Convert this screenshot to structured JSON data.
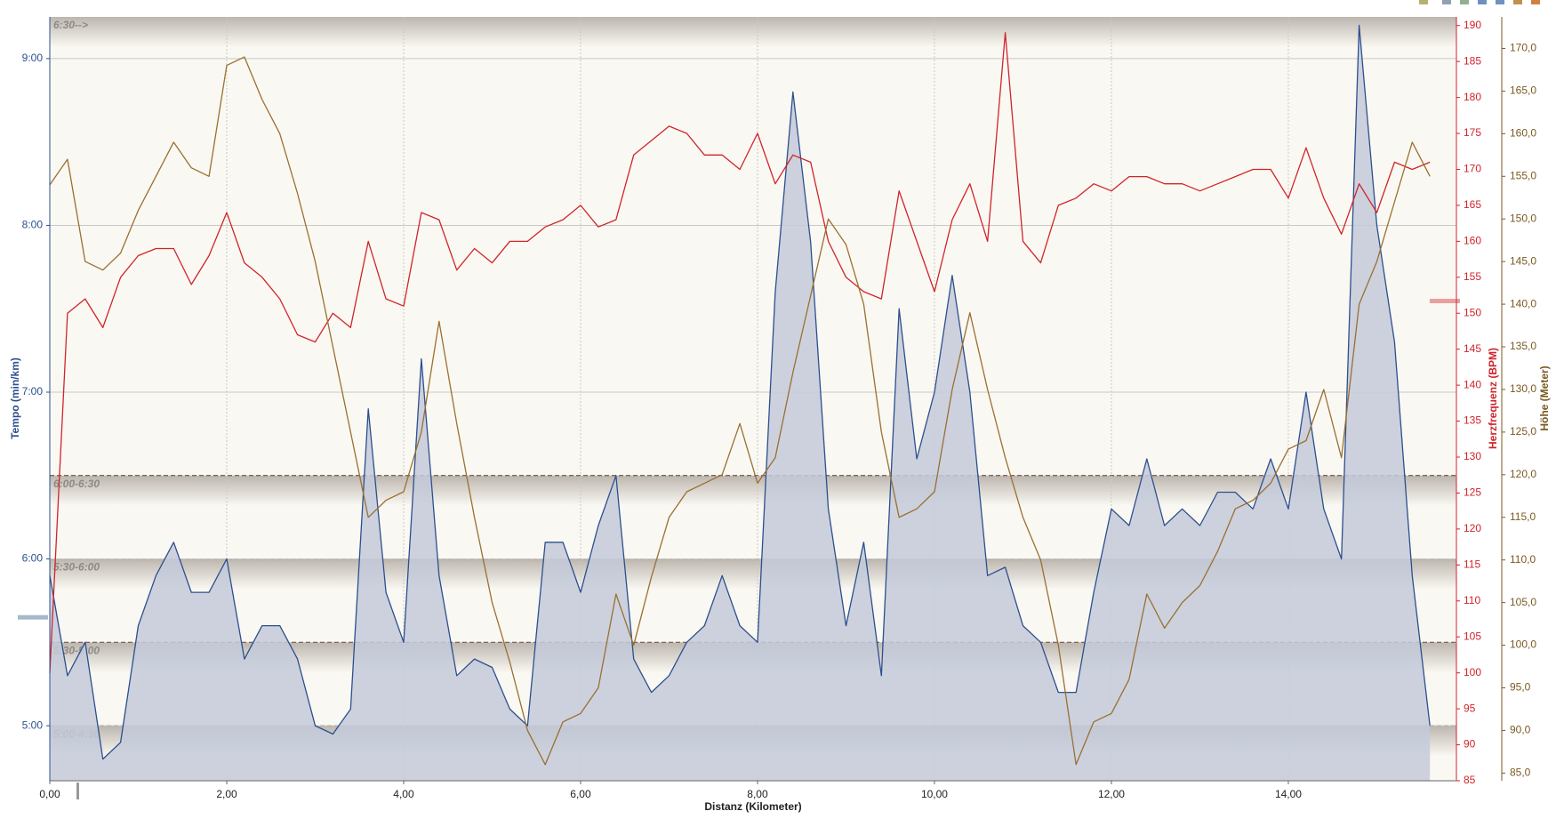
{
  "chart_data": {
    "type": "line",
    "xlabel": "Distanz (Kilometer)",
    "ylabel": "Tempo (min/km)",
    "y2label": "Herzfrequenz (BPM)",
    "y3label": "Höhe (Meter)",
    "xlim": [
      0,
      15.9
    ],
    "xticks": [
      {
        "value": 0,
        "label": "0,00"
      },
      {
        "value": 2,
        "label": "2,00"
      },
      {
        "value": 4,
        "label": "4,00"
      },
      {
        "value": 6,
        "label": "6,00"
      },
      {
        "value": 8,
        "label": "8,00"
      },
      {
        "value": 10,
        "label": "10,00"
      },
      {
        "value": 12,
        "label": "12,00"
      },
      {
        "value": 14,
        "label": "14,00"
      }
    ],
    "ylim": [
      4.67,
      9.25
    ],
    "yticks": [
      {
        "value": 5,
        "label": "5:00"
      },
      {
        "value": 6,
        "label": "6:00"
      },
      {
        "value": 7,
        "label": "7:00"
      },
      {
        "value": 8,
        "label": "8:00"
      },
      {
        "value": 9,
        "label": "9:00"
      }
    ],
    "y2lim": [
      85,
      191.2
    ],
    "y2ticks": [
      85,
      90,
      95,
      100,
      105,
      110,
      115,
      120,
      125,
      130,
      135,
      140,
      145,
      150,
      155,
      160,
      165,
      170,
      175,
      180,
      185,
      190
    ],
    "y3lim": [
      84.1,
      173.7
    ],
    "y3ticks": [
      {
        "value": 85,
        "label": "85,0"
      },
      {
        "value": 90,
        "label": "90,0"
      },
      {
        "value": 95,
        "label": "95,0"
      },
      {
        "value": 100,
        "label": "100,0"
      },
      {
        "value": 105,
        "label": "105,0"
      },
      {
        "value": 110,
        "label": "110,0"
      },
      {
        "value": 115,
        "label": "115,0"
      },
      {
        "value": 120,
        "label": "120,0"
      },
      {
        "value": 125,
        "label": "125,0"
      },
      {
        "value": 130,
        "label": "130,0"
      },
      {
        "value": 135,
        "label": "135,0"
      },
      {
        "value": 140,
        "label": "140,0"
      },
      {
        "value": 145,
        "label": "145,0"
      },
      {
        "value": 150,
        "label": "150,0"
      },
      {
        "value": 155,
        "label": "155,0"
      },
      {
        "value": 160,
        "label": "160,0"
      },
      {
        "value": 165,
        "label": "165,0"
      },
      {
        "value": 170,
        "label": "170,0"
      }
    ],
    "grid": true,
    "zones": [
      {
        "label": "6:30-->",
        "min": 6.5
      },
      {
        "label": "6:00-6:30",
        "min": 6.0
      },
      {
        "label": "5:30-6:00",
        "min": 5.5
      },
      {
        "label": "5:30-5:00",
        "min": 5.0
      },
      {
        "label": "5:00-4:30",
        "min": 4.5
      }
    ],
    "tempo_average": 5.65,
    "y2_average": 151.7,
    "x": [
      0,
      0.2,
      0.4,
      0.6,
      0.8,
      1.0,
      1.2,
      1.4,
      1.6,
      1.8,
      2.0,
      2.2,
      2.4,
      2.6,
      2.8,
      3.0,
      3.2,
      3.4,
      3.6,
      3.8,
      4.0,
      4.2,
      4.4,
      4.6,
      4.8,
      5.0,
      5.2,
      5.4,
      5.6,
      5.8,
      6.0,
      6.2,
      6.4,
      6.6,
      6.8,
      7.0,
      7.2,
      7.4,
      7.6,
      7.8,
      8.0,
      8.2,
      8.4,
      8.6,
      8.8,
      9.0,
      9.2,
      9.4,
      9.6,
      9.8,
      10.0,
      10.2,
      10.4,
      10.6,
      10.8,
      11.0,
      11.2,
      11.4,
      11.6,
      11.8,
      12.0,
      12.2,
      12.4,
      12.6,
      12.8,
      13.0,
      13.2,
      13.4,
      13.6,
      13.8,
      14.0,
      14.2,
      14.4,
      14.6,
      14.8,
      15.0,
      15.2,
      15.4,
      15.6
    ],
    "series": [
      {
        "axis": "y",
        "color": "#2c4f8f",
        "fill": "#c3cad9",
        "values": [
          5.9,
          5.3,
          5.5,
          4.8,
          4.9,
          5.6,
          5.9,
          6.1,
          5.8,
          5.8,
          6.0,
          5.4,
          5.6,
          5.6,
          5.4,
          5.0,
          4.95,
          5.1,
          6.9,
          5.8,
          5.5,
          7.2,
          5.9,
          5.3,
          5.4,
          5.35,
          5.1,
          5.0,
          6.1,
          6.1,
          5.8,
          6.2,
          6.5,
          5.4,
          5.2,
          5.3,
          5.5,
          5.6,
          5.9,
          5.6,
          5.5,
          7.6,
          8.8,
          7.9,
          6.3,
          5.6,
          6.1,
          5.3,
          7.5,
          6.6,
          7.0,
          7.7,
          7.0,
          5.9,
          5.95,
          5.6,
          5.5,
          5.2,
          5.2,
          5.8,
          6.3,
          6.2,
          6.6,
          6.2,
          6.3,
          6.2,
          6.4,
          6.4,
          6.3,
          6.6,
          6.3,
          7.0,
          6.3,
          6.0,
          9.2,
          8.0,
          7.3,
          5.9,
          5.0
        ]
      },
      {
        "axis": "y2",
        "color": "#d0242b",
        "values": [
          100,
          150,
          152,
          148,
          155,
          158,
          159,
          159,
          154,
          158,
          164,
          157,
          155,
          152,
          147,
          146,
          150,
          148,
          160,
          152,
          151,
          164,
          163,
          156,
          159,
          157,
          160,
          160,
          162,
          163,
          165,
          162,
          163,
          172,
          174,
          176,
          175,
          172,
          172,
          170,
          175,
          168,
          172,
          171,
          160,
          155,
          153,
          152,
          167,
          160,
          153,
          163,
          168,
          160,
          189,
          160,
          157,
          165,
          166,
          168,
          167,
          169,
          169,
          168,
          168,
          167,
          168,
          169,
          170,
          170,
          166,
          173,
          166,
          161,
          168,
          164,
          171,
          170,
          171
        ]
      },
      {
        "axis": "y3",
        "color": "#9a7030",
        "values": [
          154,
          157,
          145,
          144,
          146,
          151,
          155,
          159,
          156,
          155,
          168,
          169,
          164,
          160,
          153,
          145,
          135,
          125,
          115,
          117,
          118,
          125,
          138,
          126,
          115,
          105,
          98,
          90,
          86,
          91,
          92,
          95,
          106,
          100,
          108,
          115,
          118,
          119,
          120,
          126,
          119,
          122,
          132,
          141,
          150,
          147,
          140,
          125,
          115,
          116,
          118,
          130,
          139,
          130,
          122,
          115,
          110,
          100,
          86,
          91,
          92,
          96,
          106,
          102,
          105,
          107,
          111,
          116,
          117,
          119,
          123,
          124,
          130,
          122,
          140,
          145,
          152,
          159,
          155
        ]
      }
    ]
  }
}
